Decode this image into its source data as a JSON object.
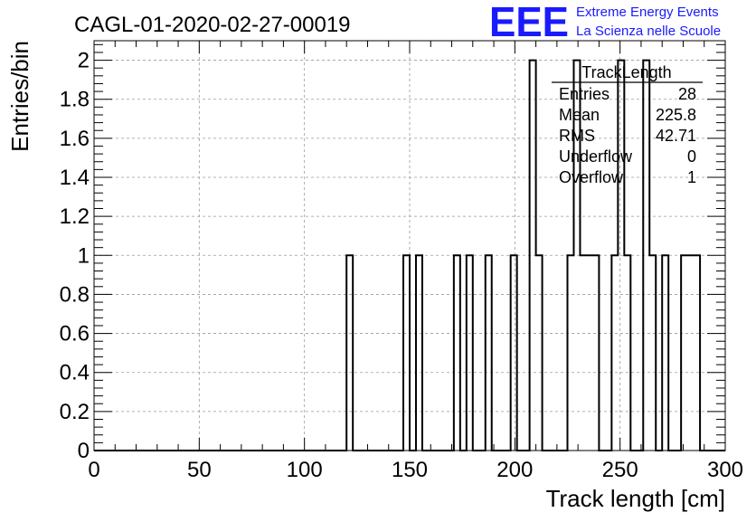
{
  "header": {
    "run_title": "CAGL-01-2020-02-27-00019",
    "logo_text": "EEE",
    "logo_line1": "Extreme Energy Events",
    "logo_line2": "La Scienza nelle Scuole",
    "logo_color": "#1a1aff"
  },
  "stats": {
    "name": "TrackLength",
    "rows": [
      {
        "label": "Entries",
        "value": "28"
      },
      {
        "label": "Mean",
        "value": "225.8"
      },
      {
        "label": "RMS",
        "value": "42.71"
      },
      {
        "label": "Underflow",
        "value": "0"
      },
      {
        "label": "Overflow",
        "value": "1"
      }
    ]
  },
  "chart_data": {
    "type": "bar",
    "histogram": true,
    "xlabel": "Track length [cm]",
    "ylabel": "Entries/bin",
    "xlim": [
      0,
      300
    ],
    "ylim": [
      0,
      2.1
    ],
    "grid": true,
    "bin_width": 3,
    "xticks": [
      0,
      50,
      100,
      150,
      200,
      250,
      300
    ],
    "yticks": [
      0,
      0.2,
      0.4,
      0.6,
      0.8,
      1,
      1.2,
      1.4,
      1.6,
      1.8,
      2
    ],
    "ytick_labels": [
      "0",
      "0.2",
      "0.4",
      "0.6",
      "0.8",
      "1",
      "1.2",
      "1.4",
      "1.6",
      "1.8",
      "2"
    ],
    "bins": [
      {
        "x": 120,
        "count": 1
      },
      {
        "x": 147,
        "count": 1
      },
      {
        "x": 153,
        "count": 1
      },
      {
        "x": 171,
        "count": 1
      },
      {
        "x": 177,
        "count": 1
      },
      {
        "x": 186,
        "count": 1
      },
      {
        "x": 198,
        "count": 1
      },
      {
        "x": 207,
        "count": 2
      },
      {
        "x": 210,
        "count": 1
      },
      {
        "x": 225,
        "count": 1
      },
      {
        "x": 228,
        "count": 2
      },
      {
        "x": 231,
        "count": 1
      },
      {
        "x": 234,
        "count": 1
      },
      {
        "x": 237,
        "count": 1
      },
      {
        "x": 246,
        "count": 1
      },
      {
        "x": 249,
        "count": 2
      },
      {
        "x": 252,
        "count": 1
      },
      {
        "x": 261,
        "count": 2
      },
      {
        "x": 264,
        "count": 1
      },
      {
        "x": 270,
        "count": 1
      },
      {
        "x": 279,
        "count": 1
      },
      {
        "x": 282,
        "count": 1
      },
      {
        "x": 285,
        "count": 1
      }
    ]
  }
}
